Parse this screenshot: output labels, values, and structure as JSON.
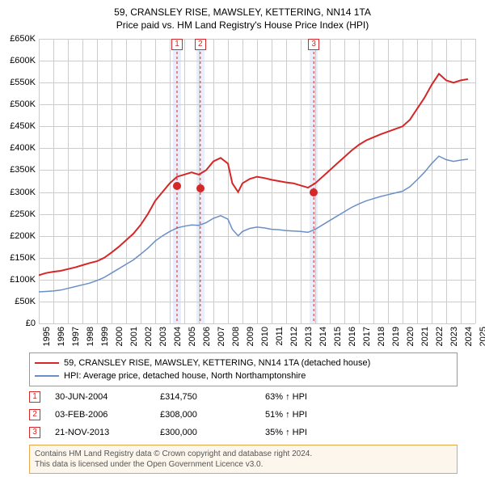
{
  "title": {
    "line1": "59, CRANSLEY RISE, MAWSLEY, KETTERING, NN14 1TA",
    "line2": "Price paid vs. HM Land Registry's House Price Index (HPI)"
  },
  "chart": {
    "type": "line",
    "xlim": [
      1995,
      2025
    ],
    "ylim": [
      0,
      650000
    ],
    "x_ticks": [
      1995,
      1996,
      1997,
      1998,
      1999,
      2000,
      2001,
      2002,
      2003,
      2004,
      2005,
      2006,
      2007,
      2008,
      2009,
      2010,
      2011,
      2012,
      2013,
      2014,
      2015,
      2016,
      2017,
      2018,
      2019,
      2020,
      2021,
      2022,
      2023,
      2024,
      2025
    ],
    "y_ticks": [
      0,
      50000,
      100000,
      150000,
      200000,
      250000,
      300000,
      350000,
      400000,
      450000,
      500000,
      550000,
      600000,
      650000
    ],
    "y_tick_labels": [
      "£0",
      "£50K",
      "£100K",
      "£150K",
      "£200K",
      "£250K",
      "£300K",
      "£350K",
      "£400K",
      "£450K",
      "£500K",
      "£550K",
      "£600K",
      "£650K"
    ],
    "background_color": "#ffffff",
    "grid_color": "#cccccc",
    "band_color": "#e8eefb",
    "label_fontsize": 11,
    "series": {
      "property": {
        "color": "#d62728",
        "width": 2,
        "points": [
          [
            1995,
            110000
          ],
          [
            1995.5,
            115000
          ],
          [
            1996,
            118000
          ],
          [
            1996.5,
            120000
          ],
          [
            1997,
            124000
          ],
          [
            1997.5,
            128000
          ],
          [
            1998,
            133000
          ],
          [
            1998.5,
            138000
          ],
          [
            1999,
            142000
          ],
          [
            1999.5,
            150000
          ],
          [
            2000,
            162000
          ],
          [
            2000.5,
            175000
          ],
          [
            2001,
            190000
          ],
          [
            2001.5,
            205000
          ],
          [
            2002,
            225000
          ],
          [
            2002.5,
            250000
          ],
          [
            2003,
            280000
          ],
          [
            2003.5,
            300000
          ],
          [
            2004,
            320000
          ],
          [
            2004.5,
            335000
          ],
          [
            2005,
            340000
          ],
          [
            2005.5,
            345000
          ],
          [
            2006,
            340000
          ],
          [
            2006.5,
            350000
          ],
          [
            2007,
            370000
          ],
          [
            2007.5,
            378000
          ],
          [
            2008,
            365000
          ],
          [
            2008.3,
            320000
          ],
          [
            2008.7,
            300000
          ],
          [
            2009,
            320000
          ],
          [
            2009.5,
            330000
          ],
          [
            2010,
            335000
          ],
          [
            2010.5,
            332000
          ],
          [
            2011,
            328000
          ],
          [
            2011.5,
            325000
          ],
          [
            2012,
            322000
          ],
          [
            2012.5,
            320000
          ],
          [
            2013,
            315000
          ],
          [
            2013.5,
            310000
          ],
          [
            2014,
            320000
          ],
          [
            2014.5,
            335000
          ],
          [
            2015,
            350000
          ],
          [
            2015.5,
            365000
          ],
          [
            2016,
            380000
          ],
          [
            2016.5,
            395000
          ],
          [
            2017,
            408000
          ],
          [
            2017.5,
            418000
          ],
          [
            2018,
            425000
          ],
          [
            2018.5,
            432000
          ],
          [
            2019,
            438000
          ],
          [
            2019.5,
            444000
          ],
          [
            2020,
            450000
          ],
          [
            2020.5,
            465000
          ],
          [
            2021,
            490000
          ],
          [
            2021.5,
            515000
          ],
          [
            2022,
            545000
          ],
          [
            2022.5,
            570000
          ],
          [
            2023,
            555000
          ],
          [
            2023.5,
            550000
          ],
          [
            2024,
            555000
          ],
          [
            2024.5,
            558000
          ]
        ]
      },
      "hpi": {
        "color": "#6a8fc7",
        "width": 1.5,
        "points": [
          [
            1995,
            72000
          ],
          [
            1995.5,
            73000
          ],
          [
            1996,
            74000
          ],
          [
            1996.5,
            76000
          ],
          [
            1997,
            80000
          ],
          [
            1997.5,
            84000
          ],
          [
            1998,
            88000
          ],
          [
            1998.5,
            92000
          ],
          [
            1999,
            98000
          ],
          [
            1999.5,
            105000
          ],
          [
            2000,
            115000
          ],
          [
            2000.5,
            125000
          ],
          [
            2001,
            135000
          ],
          [
            2001.5,
            145000
          ],
          [
            2002,
            158000
          ],
          [
            2002.5,
            172000
          ],
          [
            2003,
            188000
          ],
          [
            2003.5,
            200000
          ],
          [
            2004,
            210000
          ],
          [
            2004.5,
            218000
          ],
          [
            2005,
            222000
          ],
          [
            2005.5,
            225000
          ],
          [
            2006,
            224000
          ],
          [
            2006.5,
            230000
          ],
          [
            2007,
            240000
          ],
          [
            2007.5,
            246000
          ],
          [
            2008,
            238000
          ],
          [
            2008.3,
            215000
          ],
          [
            2008.7,
            200000
          ],
          [
            2009,
            210000
          ],
          [
            2009.5,
            217000
          ],
          [
            2010,
            220000
          ],
          [
            2010.5,
            218000
          ],
          [
            2011,
            215000
          ],
          [
            2011.5,
            214000
          ],
          [
            2012,
            212000
          ],
          [
            2012.5,
            211000
          ],
          [
            2013,
            210000
          ],
          [
            2013.5,
            208000
          ],
          [
            2014,
            215000
          ],
          [
            2014.5,
            225000
          ],
          [
            2015,
            235000
          ],
          [
            2015.5,
            245000
          ],
          [
            2016,
            255000
          ],
          [
            2016.5,
            265000
          ],
          [
            2017,
            273000
          ],
          [
            2017.5,
            280000
          ],
          [
            2018,
            285000
          ],
          [
            2018.5,
            290000
          ],
          [
            2019,
            294000
          ],
          [
            2019.5,
            298000
          ],
          [
            2020,
            302000
          ],
          [
            2020.5,
            312000
          ],
          [
            2021,
            328000
          ],
          [
            2021.5,
            345000
          ],
          [
            2022,
            365000
          ],
          [
            2022.5,
            382000
          ],
          [
            2023,
            374000
          ],
          [
            2023.5,
            370000
          ],
          [
            2024,
            373000
          ],
          [
            2024.5,
            375000
          ]
        ]
      }
    },
    "sale_markers": [
      {
        "n": "1",
        "x": 2004.5,
        "y": 314750,
        "color": "#d62728"
      },
      {
        "n": "2",
        "x": 2006.1,
        "y": 308000,
        "color": "#d62728"
      },
      {
        "n": "3",
        "x": 2013.9,
        "y": 300000,
        "color": "#d62728"
      }
    ]
  },
  "legend": {
    "items": [
      {
        "color": "#d62728",
        "label": "59, CRANSLEY RISE, MAWSLEY, KETTERING, NN14 1TA (detached house)"
      },
      {
        "color": "#6a8fc7",
        "label": "HPI: Average price, detached house, North Northamptonshire"
      }
    ]
  },
  "sales": [
    {
      "n": "1",
      "color": "#d62728",
      "date": "30-JUN-2004",
      "price": "£314,750",
      "pct": "63% ",
      "suffix": " HPI"
    },
    {
      "n": "2",
      "color": "#d62728",
      "date": "03-FEB-2006",
      "price": "£308,000",
      "pct": "51% ",
      "suffix": " HPI"
    },
    {
      "n": "3",
      "color": "#d62728",
      "date": "21-NOV-2013",
      "price": "£300,000",
      "pct": "35% ",
      "suffix": " HPI"
    }
  ],
  "attribution": {
    "line1": "Contains HM Land Registry data © Crown copyright and database right 2024.",
    "line2": "This data is licensed under the Open Government Licence v3.0."
  }
}
